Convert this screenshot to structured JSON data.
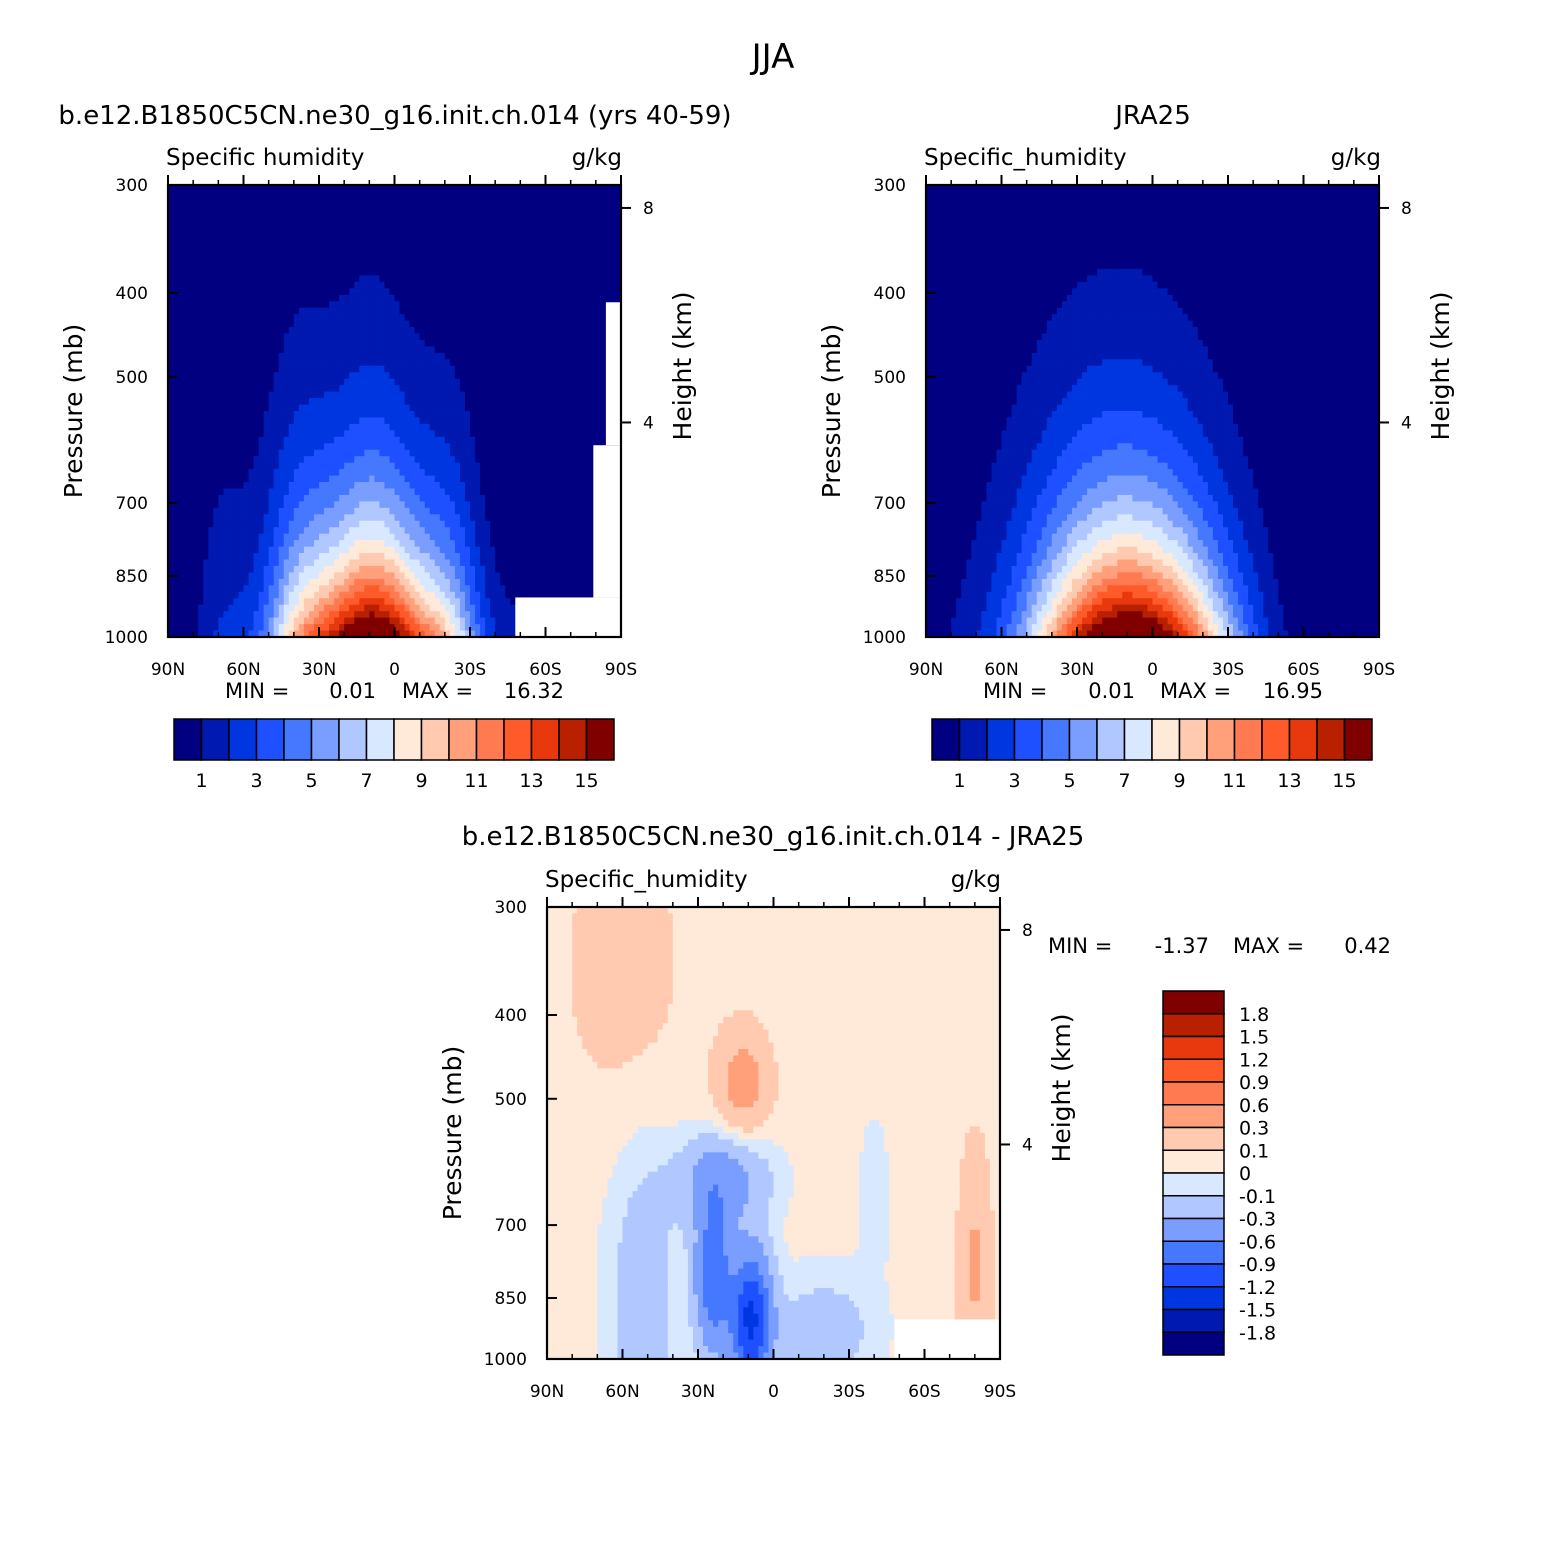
{
  "figure": {
    "title": "JJA",
    "min_label": "MIN =",
    "max_label": "MAX =",
    "tick_y_right_label": "Height (km)"
  },
  "panels": [
    {
      "id": "model",
      "header": "b.e12.B1850C5CN.ne30_g16.init.ch.014 (yrs 40-59)",
      "left_string": "Specific humidity",
      "right_string": "g/kg",
      "min": "0.01",
      "max": "16.32"
    },
    {
      "id": "obs",
      "header": "JRA25",
      "left_string": "Specific_humidity",
      "right_string": "g/kg",
      "min": "0.01",
      "max": "16.95"
    },
    {
      "id": "diff",
      "header": "b.e12.B1850C5CN.ne30_g16.init.ch.014 - JRA25",
      "left_string": "Specific_humidity",
      "right_string": "g/kg",
      "min": "-1.37",
      "max": "0.42"
    }
  ],
  "colors": {
    "abs_scale": [
      "#000080",
      "#0019b0",
      "#0036e0",
      "#1f50ff",
      "#4578ff",
      "#7a9eff",
      "#b0c8ff",
      "#d8e8ff",
      "#ffeada",
      "#ffcab0",
      "#ffa07a",
      "#ff7a50",
      "#ff5a2a",
      "#e8380d",
      "#b82000",
      "#800000"
    ],
    "diff_scale": [
      "#000080",
      "#0019b0",
      "#0036e0",
      "#1f50ff",
      "#4578ff",
      "#7a9eff",
      "#b0c8ff",
      "#d8e8ff",
      "#ffeada",
      "#ffcab0",
      "#ffa07a",
      "#ff7a50",
      "#ff5a2a",
      "#e8380d",
      "#b82000",
      "#800000"
    ]
  },
  "chart_data": [
    {
      "type": "contour",
      "panel": "model",
      "title": "b.e12.B1850C5CN.ne30_g16.init.ch.014 (yrs 40-59)",
      "variable": "Specific humidity",
      "units": "g/kg",
      "xlabel": "",
      "ylabel": "Pressure (mb)",
      "ylabel_right": "Height (km)",
      "x_ticks": [
        "90N",
        "60N",
        "30N",
        "0",
        "30S",
        "60S",
        "90S"
      ],
      "y_ticks": [
        "300",
        "400",
        "500",
        "700",
        "850",
        "1000"
      ],
      "y_ticks_right": [
        "8",
        "4"
      ],
      "y_scale": "log",
      "ylim": [
        1000,
        300
      ],
      "xlim": [
        "90N",
        "90S"
      ],
      "contour_levels": [
        1,
        2,
        3,
        4,
        5,
        6,
        7,
        8,
        9,
        10,
        11,
        12,
        13,
        14,
        15
      ],
      "colorbar_labels": [
        "1",
        "3",
        "5",
        "7",
        "9",
        "11",
        "13",
        "15"
      ],
      "min": 0.01,
      "max": 16.32
    },
    {
      "type": "contour",
      "panel": "obs",
      "title": "JRA25",
      "variable": "Specific_humidity",
      "units": "g/kg",
      "xlabel": "",
      "ylabel": "Pressure (mb)",
      "ylabel_right": "Height (km)",
      "x_ticks": [
        "90N",
        "60N",
        "30N",
        "0",
        "30S",
        "60S",
        "90S"
      ],
      "y_ticks": [
        "300",
        "400",
        "500",
        "700",
        "850",
        "1000"
      ],
      "y_ticks_right": [
        "8",
        "4"
      ],
      "y_scale": "log",
      "ylim": [
        1000,
        300
      ],
      "xlim": [
        "90N",
        "90S"
      ],
      "contour_levels": [
        1,
        2,
        3,
        4,
        5,
        6,
        7,
        8,
        9,
        10,
        11,
        12,
        13,
        14,
        15
      ],
      "colorbar_labels": [
        "1",
        "3",
        "5",
        "7",
        "9",
        "11",
        "13",
        "15"
      ],
      "min": 0.01,
      "max": 16.95
    },
    {
      "type": "contour",
      "panel": "diff",
      "title": "b.e12.B1850C5CN.ne30_g16.init.ch.014 - JRA25",
      "variable": "Specific_humidity",
      "units": "g/kg",
      "xlabel": "",
      "ylabel": "Pressure (mb)",
      "ylabel_right": "Height (km)",
      "x_ticks": [
        "90N",
        "60N",
        "30N",
        "0",
        "30S",
        "60S",
        "90S"
      ],
      "y_ticks": [
        "300",
        "400",
        "500",
        "700",
        "850",
        "1000"
      ],
      "y_ticks_right": [
        "8",
        "4"
      ],
      "y_scale": "log",
      "ylim": [
        1000,
        300
      ],
      "xlim": [
        "90N",
        "90S"
      ],
      "contour_levels": [
        -1.8,
        -1.5,
        -1.2,
        -0.9,
        -0.6,
        -0.3,
        -0.1,
        0,
        0.1,
        0.3,
        0.6,
        0.9,
        1.2,
        1.5,
        1.8
      ],
      "colorbar_labels": [
        "1.8",
        "1.5",
        "1.2",
        "0.9",
        "0.6",
        "0.3",
        "0.1",
        "0",
        "-0.1",
        "-0.3",
        "-0.6",
        "-0.9",
        "-1.2",
        "-1.5",
        "-1.8"
      ],
      "min": -1.37,
      "max": 0.42
    }
  ]
}
